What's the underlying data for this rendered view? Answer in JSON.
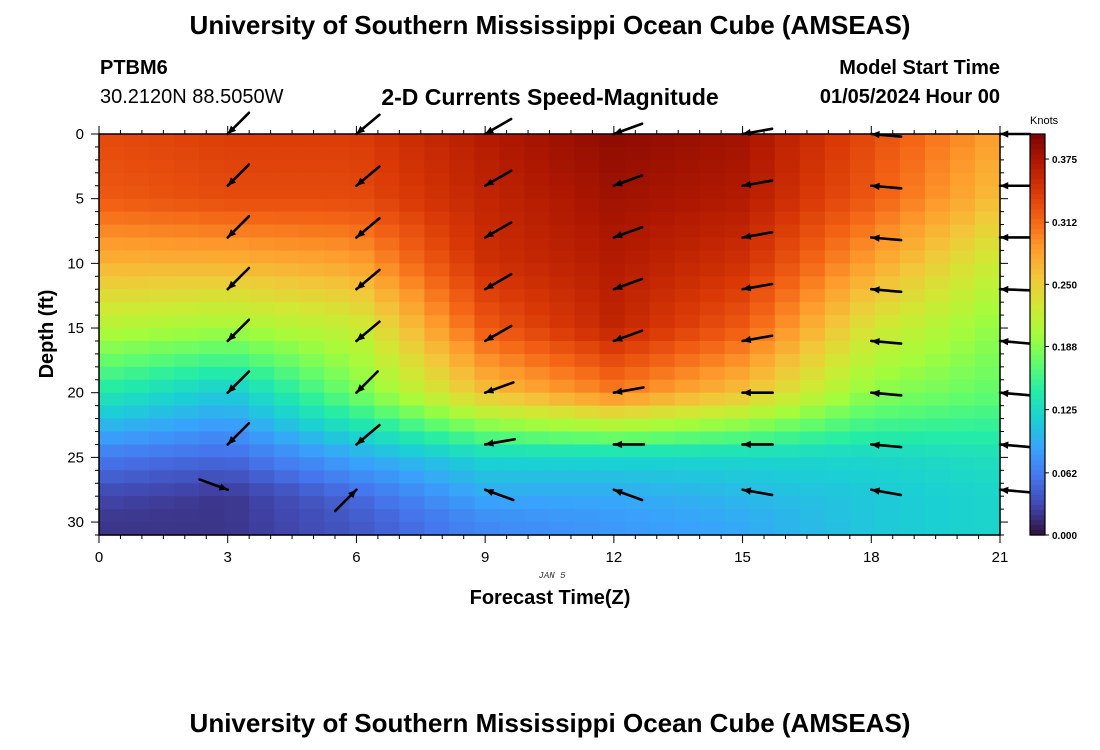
{
  "header": {
    "title": "University of Southern Mississippi Ocean Cube (AMSEAS)",
    "station": "PTBM6",
    "coords": "30.2120N  88.5050W",
    "subtitle": "2-D Currents Speed-Magnitude",
    "model_label": "Model Start Time",
    "model_time": "01/05/2024 Hour 00"
  },
  "footer": {
    "title": "University of Southern Mississippi Ocean Cube (AMSEAS)"
  },
  "chart_data": {
    "type": "heatmap",
    "title": "2-D Currents Speed-Magnitude",
    "xlabel": "Forecast Time(Z)",
    "ylabel": "Depth (ft)",
    "date_label": "JAN 5",
    "xlim": [
      0,
      21
    ],
    "ylim": [
      0,
      31
    ],
    "y_inverted": true,
    "x_ticks": [
      0,
      3,
      6,
      9,
      12,
      15,
      18,
      21
    ],
    "y_ticks": [
      0,
      5,
      10,
      15,
      20,
      25,
      30
    ],
    "colorbar": {
      "unit": "Knots",
      "ticks": [
        "0.375",
        "0.312",
        "0.250",
        "0.188",
        "0.125",
        "0.062",
        "0.000"
      ],
      "range": [
        0,
        0.4
      ],
      "colors": [
        "#30123b",
        "#4145ab",
        "#4675ed",
        "#39a2fc",
        "#1bcfd4",
        "#24eca6",
        "#61fc6c",
        "#a4fc3b",
        "#d1e834",
        "#f3c63a",
        "#fe9b2d",
        "#f36315",
        "#d93806",
        "#b11901",
        "#7a0403"
      ]
    },
    "speed_field": {
      "times": [
        0,
        3,
        6,
        9,
        12,
        15,
        18,
        21
      ],
      "depths": [
        0,
        5,
        10,
        15,
        20,
        25,
        28,
        30
      ],
      "speed_knots": [
        [
          0.33,
          0.34,
          0.34,
          0.37,
          0.39,
          0.38,
          0.33,
          0.28
        ],
        [
          0.32,
          0.33,
          0.33,
          0.36,
          0.38,
          0.37,
          0.32,
          0.26
        ],
        [
          0.27,
          0.27,
          0.28,
          0.35,
          0.37,
          0.35,
          0.28,
          0.22
        ],
        [
          0.21,
          0.2,
          0.22,
          0.32,
          0.36,
          0.32,
          0.23,
          0.19
        ],
        [
          0.14,
          0.11,
          0.18,
          0.26,
          0.3,
          0.26,
          0.19,
          0.17
        ],
        [
          0.06,
          0.05,
          0.09,
          0.12,
          0.12,
          0.12,
          0.12,
          0.13
        ],
        [
          0.03,
          0.02,
          0.05,
          0.09,
          0.09,
          0.1,
          0.11,
          0.12
        ],
        [
          0.02,
          0.02,
          0.04,
          0.07,
          0.08,
          0.09,
          0.11,
          0.12
        ]
      ]
    },
    "vectors": {
      "times": [
        3,
        6,
        9,
        12,
        15,
        18,
        21
      ],
      "depths": [
        0,
        4,
        8,
        12,
        16,
        20,
        24,
        27.5
      ],
      "direction_deg": [
        [
          225,
          220,
          210,
          200,
          190,
          175,
          180
        ],
        [
          225,
          220,
          210,
          200,
          190,
          175,
          180
        ],
        [
          225,
          220,
          210,
          200,
          190,
          175,
          180
        ],
        [
          225,
          220,
          210,
          200,
          190,
          175,
          178
        ],
        [
          225,
          220,
          210,
          200,
          190,
          175,
          175
        ],
        [
          225,
          225,
          200,
          190,
          180,
          175,
          175
        ],
        [
          225,
          220,
          190,
          180,
          180,
          175,
          175
        ],
        [
          -20,
          45,
          160,
          160,
          170,
          170,
          175
        ]
      ]
    }
  }
}
